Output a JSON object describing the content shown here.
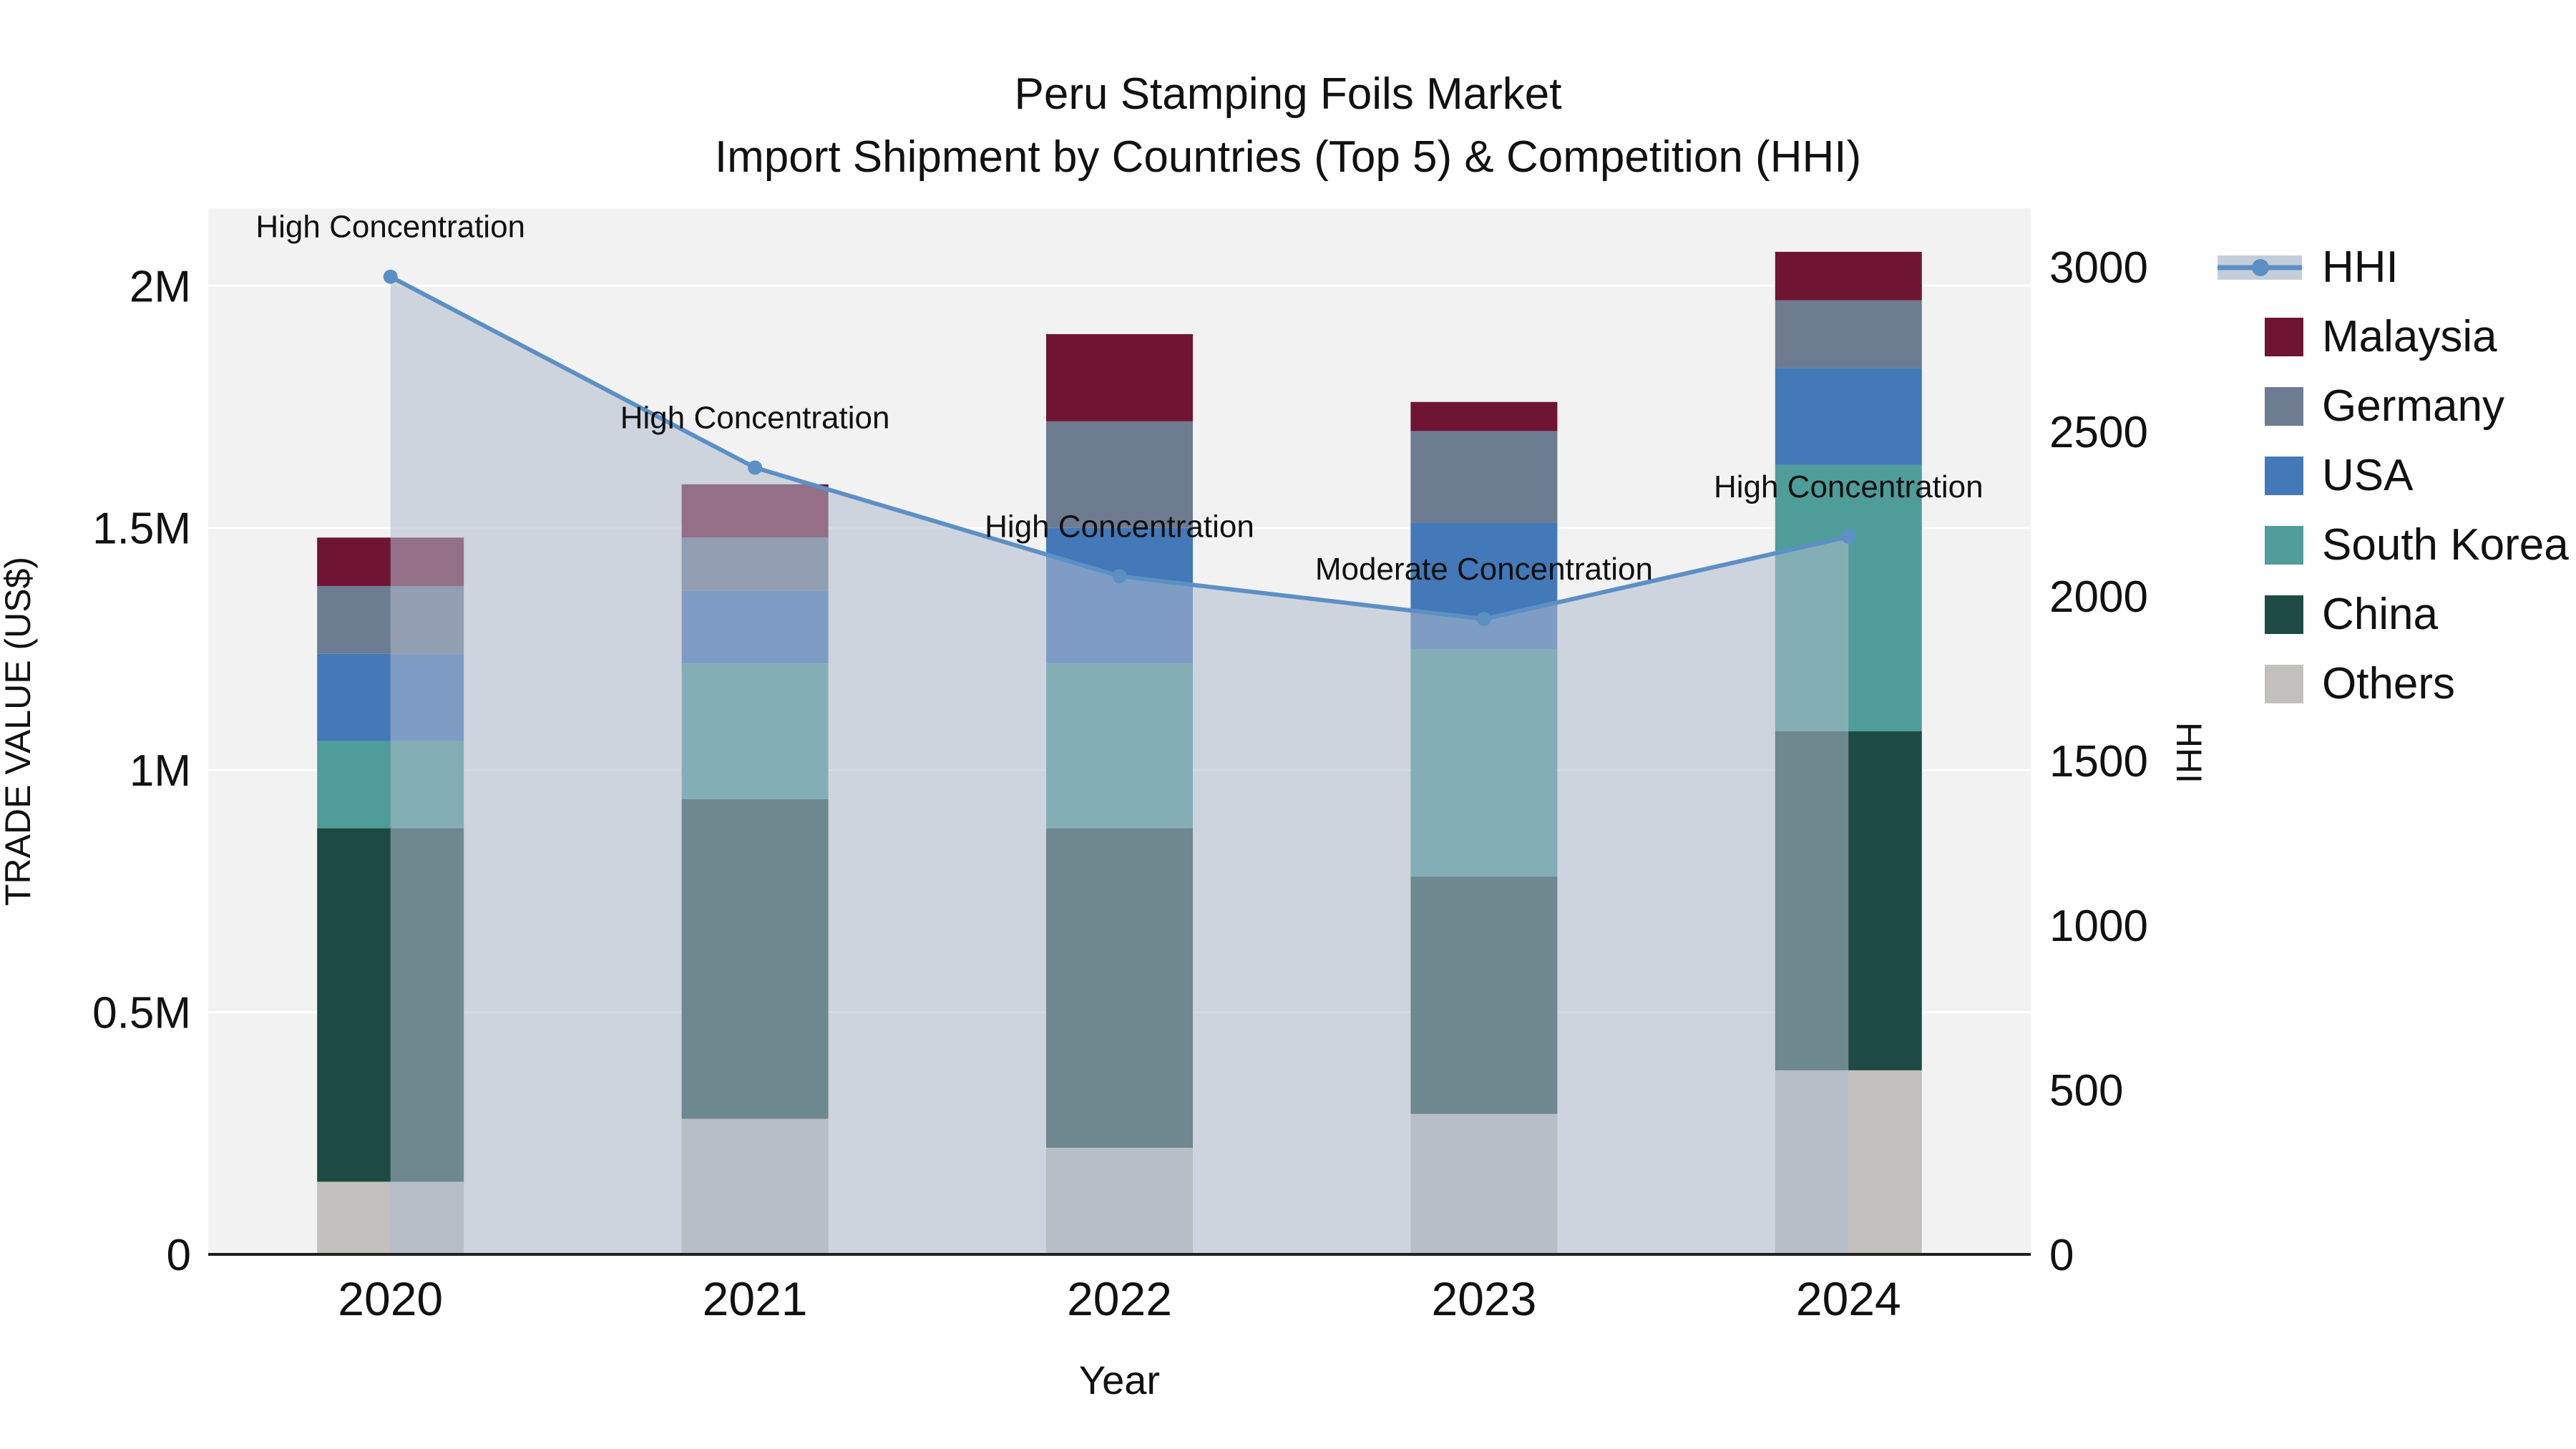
{
  "chart_data": {
    "type": "bar",
    "subtype": "stacked-bars-with-line-overlay",
    "title": "Peru Stamping Foils Market",
    "subtitle": "Import Shipment by Countries (Top 5) & Competition (HHI)",
    "xlabel": "Year",
    "ylabel": "TRADE VALUE (US$)",
    "ylabel_right": "HHI",
    "categories": [
      "2020",
      "2021",
      "2022",
      "2023",
      "2024"
    ],
    "series": [
      {
        "name": "Others",
        "color": "#c2c0bd",
        "values": [
          150000,
          280000,
          220000,
          290000,
          380000
        ]
      },
      {
        "name": "China",
        "color": "#1d4b43",
        "values": [
          730000,
          660000,
          660000,
          490000,
          700000
        ]
      },
      {
        "name": "South Korea",
        "color": "#4f9d9a",
        "values": [
          180000,
          280000,
          340000,
          470000,
          550000
        ]
      },
      {
        "name": "USA",
        "color": "#4379b8",
        "values": [
          180000,
          150000,
          280000,
          260000,
          200000
        ]
      },
      {
        "name": "Germany",
        "color": "#6d7c90",
        "values": [
          140000,
          110000,
          220000,
          190000,
          140000
        ]
      },
      {
        "name": "Malaysia",
        "color": "#701434",
        "values": [
          100000,
          110000,
          180000,
          60000,
          100000
        ]
      }
    ],
    "bar_totals": [
      1480000,
      1590000,
      1900000,
      1760000,
      2070000
    ],
    "line_series": {
      "name": "HHI",
      "color": "#5c90c5",
      "area_fill": "rgba(176, 188, 206, 0.55)",
      "values": [
        2970,
        2390,
        2060,
        1930,
        2180
      ]
    },
    "annotations": [
      {
        "category": "2020",
        "text": "High Concentration"
      },
      {
        "category": "2021",
        "text": "High Concentration"
      },
      {
        "category": "2022",
        "text": "High Concentration"
      },
      {
        "category": "2023",
        "text": "Moderate Concentration"
      },
      {
        "category": "2024",
        "text": "High Concentration"
      }
    ],
    "y_left": {
      "tick_values": [
        0,
        500000,
        1000000,
        1500000,
        2000000
      ],
      "tick_labels": [
        "0",
        "0.5M",
        "1M",
        "1.5M",
        "2M"
      ],
      "axis_max": 2160000
    },
    "y_right": {
      "tick_values": [
        0,
        500,
        1000,
        1500,
        2000,
        2500,
        3000
      ],
      "tick_labels": [
        "0",
        "500",
        "1000",
        "1500",
        "2000",
        "2500",
        "3000"
      ],
      "axis_max": 3178
    },
    "legend": [
      {
        "label": "HHI",
        "symbol": "line",
        "color": "#5c90c5"
      },
      {
        "label": "Malaysia",
        "symbol": "square",
        "color": "#701434"
      },
      {
        "label": "Germany",
        "symbol": "square",
        "color": "#6d7c90"
      },
      {
        "label": "USA",
        "symbol": "square",
        "color": "#4379b8"
      },
      {
        "label": "South Korea",
        "symbol": "square",
        "color": "#4f9d9a"
      },
      {
        "label": "China",
        "symbol": "square",
        "color": "#1d4b43"
      },
      {
        "label": "Others",
        "symbol": "square",
        "color": "#c2c0bd"
      }
    ],
    "plot_bg": "#f2f2f2",
    "grid_color": "#ffffff",
    "axis_line_color": "#1f1f1f",
    "text_color": "#111111"
  }
}
